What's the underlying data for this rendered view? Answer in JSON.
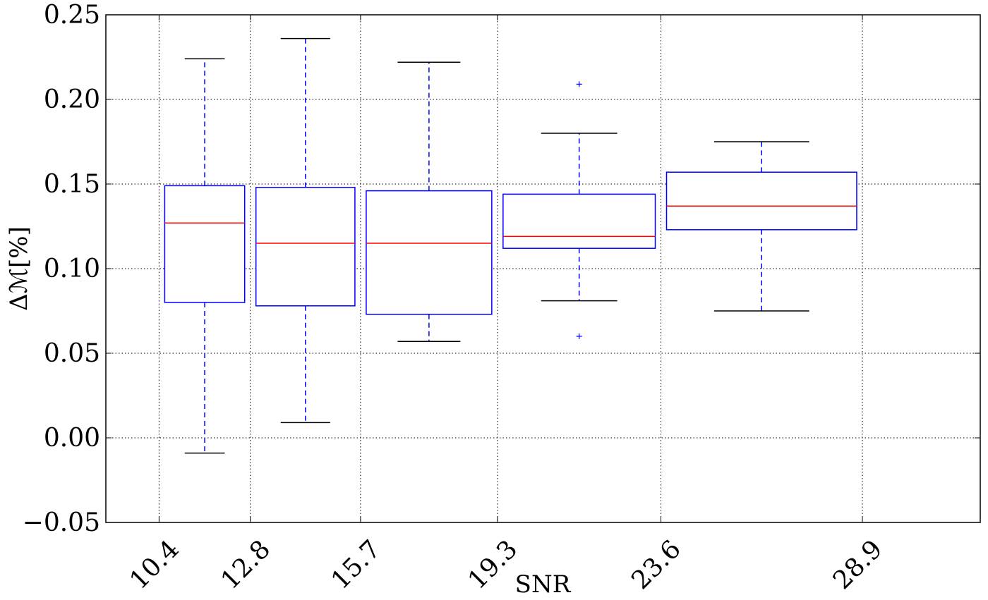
{
  "chart_data": {
    "type": "box",
    "xlabel": "SNR",
    "ylabel": "Δℳ[%]",
    "ylim": [
      -0.05,
      0.25
    ],
    "y_ticks": [
      {
        "value": -0.05,
        "label": "−0.05"
      },
      {
        "value": 0.0,
        "label": "0.00"
      },
      {
        "value": 0.05,
        "label": "0.05"
      },
      {
        "value": 0.1,
        "label": "0.10"
      },
      {
        "value": 0.15,
        "label": "0.15"
      },
      {
        "value": 0.2,
        "label": "0.20"
      },
      {
        "value": 0.25,
        "label": "0.25"
      }
    ],
    "xlim": [
      9.0,
      32.0
    ],
    "x_ticks": [
      {
        "value": 10.4,
        "label": "10.4"
      },
      {
        "value": 12.8,
        "label": "12.8"
      },
      {
        "value": 15.7,
        "label": "15.7"
      },
      {
        "value": 19.3,
        "label": "19.3"
      },
      {
        "value": 23.6,
        "label": "23.6"
      },
      {
        "value": 28.9,
        "label": "28.9"
      }
    ],
    "grid": true,
    "boxes": [
      {
        "x_low": 10.4,
        "x_high": 12.8,
        "center": 11.6,
        "q1": 0.08,
        "median": 0.127,
        "q3": 0.149,
        "whisker_low": -0.009,
        "whisker_high": 0.224,
        "outliers": []
      },
      {
        "x_low": 12.8,
        "x_high": 15.7,
        "center": 14.25,
        "q1": 0.078,
        "median": 0.115,
        "q3": 0.148,
        "whisker_low": 0.009,
        "whisker_high": 0.236,
        "outliers": []
      },
      {
        "x_low": 15.7,
        "x_high": 19.3,
        "center": 17.5,
        "q1": 0.073,
        "median": 0.115,
        "q3": 0.146,
        "whisker_low": 0.057,
        "whisker_high": 0.222,
        "outliers": []
      },
      {
        "x_low": 19.3,
        "x_high": 23.6,
        "center": 21.45,
        "q1": 0.112,
        "median": 0.119,
        "q3": 0.144,
        "whisker_low": 0.081,
        "whisker_high": 0.18,
        "outliers": [
          0.209,
          0.06
        ]
      },
      {
        "x_low": 23.6,
        "x_high": 28.9,
        "center": 26.25,
        "q1": 0.123,
        "median": 0.137,
        "q3": 0.157,
        "whisker_low": 0.075,
        "whisker_high": 0.175,
        "outliers": []
      }
    ],
    "colors": {
      "box": "#0000ff",
      "median": "#ff0000",
      "whisker_cap": "#000000",
      "grid": "#000000"
    }
  }
}
